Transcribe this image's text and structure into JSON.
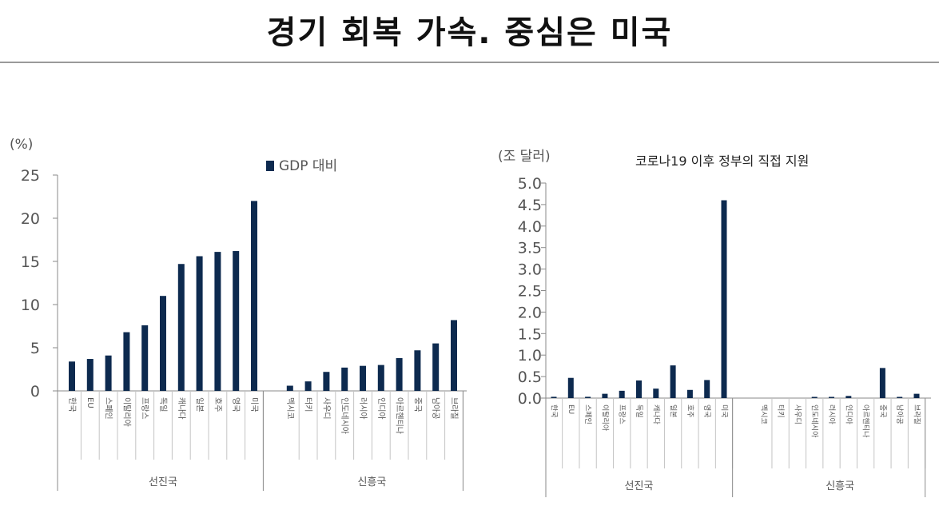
{
  "page": {
    "title": "경기 회복 가속. 중심은 미국"
  },
  "colors": {
    "bar": "#0d2a4f",
    "axis": "#8a8a8a",
    "text": "#555555"
  },
  "chart_data": [
    {
      "type": "bar",
      "unit_label": "(%)",
      "legend": "GDP 대비",
      "legend_position": "top",
      "title": "",
      "ylim": [
        0,
        25
      ],
      "yticks": [
        0,
        5,
        10,
        15,
        20,
        25
      ],
      "grid": false,
      "groups": [
        {
          "label": "선진국",
          "categories": [
            "한국",
            "EU",
            "스페인",
            "이탈리아",
            "프랑스",
            "독일",
            "캐나다",
            "일본",
            "호주",
            "영국",
            "미국"
          ],
          "values": [
            3.4,
            3.7,
            4.1,
            6.8,
            7.6,
            11.0,
            14.7,
            15.6,
            16.1,
            16.2,
            22.0
          ]
        },
        {
          "label": "신흥국",
          "categories": [
            "멕시코",
            "터키",
            "사우디",
            "인도네시아",
            "러시아",
            "인디아",
            "아르헨티나",
            "중국",
            "남아공",
            "브라질"
          ],
          "values": [
            0.6,
            1.1,
            2.2,
            2.7,
            2.9,
            3.0,
            3.8,
            4.7,
            5.5,
            8.2
          ]
        }
      ]
    },
    {
      "type": "bar",
      "unit_label": "(조 달러)",
      "title": "코로나19 이후 정부의 직접 지원",
      "ylim": [
        0,
        5
      ],
      "yticks": [
        "0.0",
        "0.5",
        "1.0",
        "1.5",
        "2.0",
        "2.5",
        "3.0",
        "3.5",
        "4.0",
        "4.5",
        "5.0"
      ],
      "grid": false,
      "groups": [
        {
          "label": "선진국",
          "categories": [
            "한국",
            "EU",
            "스페인",
            "이탈리아",
            "프랑스",
            "독일",
            "캐나다",
            "일본",
            "호주",
            "영국",
            "미국"
          ],
          "values": [
            0.03,
            0.47,
            0.03,
            0.1,
            0.17,
            0.41,
            0.22,
            0.76,
            0.19,
            0.42,
            4.6
          ]
        },
        {
          "label": "신흥국",
          "categories": [
            "멕시코",
            "터키",
            "사우디",
            "인도네시아",
            "러시아",
            "인디아",
            "아르헨티나",
            "중국",
            "남아공",
            "브라질"
          ],
          "values": [
            0.0,
            0.0,
            0.0,
            0.01,
            0.02,
            0.05,
            0.0,
            0.7,
            0.01,
            0.1
          ]
        }
      ]
    }
  ]
}
